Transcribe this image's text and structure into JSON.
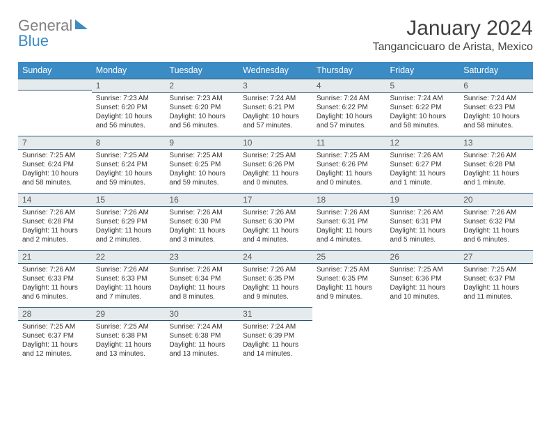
{
  "logo": {
    "word1": "General",
    "word2": "Blue"
  },
  "header": {
    "month_title": "January 2024",
    "location": "Tangancicuaro de Arista, Mexico"
  },
  "colors": {
    "header_bg": "#3b8bc4",
    "header_text": "#ffffff",
    "daynum_bg": "#e5eaed",
    "daynum_border": "#2a5673",
    "body_text": "#303030",
    "logo_grey": "#808080",
    "logo_blue": "#3b8bc4"
  },
  "days_of_week": [
    "Sunday",
    "Monday",
    "Tuesday",
    "Wednesday",
    "Thursday",
    "Friday",
    "Saturday"
  ],
  "weeks": [
    [
      null,
      {
        "n": "1",
        "sunrise": "Sunrise: 7:23 AM",
        "sunset": "Sunset: 6:20 PM",
        "dl1": "Daylight: 10 hours",
        "dl2": "and 56 minutes."
      },
      {
        "n": "2",
        "sunrise": "Sunrise: 7:23 AM",
        "sunset": "Sunset: 6:20 PM",
        "dl1": "Daylight: 10 hours",
        "dl2": "and 56 minutes."
      },
      {
        "n": "3",
        "sunrise": "Sunrise: 7:24 AM",
        "sunset": "Sunset: 6:21 PM",
        "dl1": "Daylight: 10 hours",
        "dl2": "and 57 minutes."
      },
      {
        "n": "4",
        "sunrise": "Sunrise: 7:24 AM",
        "sunset": "Sunset: 6:22 PM",
        "dl1": "Daylight: 10 hours",
        "dl2": "and 57 minutes."
      },
      {
        "n": "5",
        "sunrise": "Sunrise: 7:24 AM",
        "sunset": "Sunset: 6:22 PM",
        "dl1": "Daylight: 10 hours",
        "dl2": "and 58 minutes."
      },
      {
        "n": "6",
        "sunrise": "Sunrise: 7:24 AM",
        "sunset": "Sunset: 6:23 PM",
        "dl1": "Daylight: 10 hours",
        "dl2": "and 58 minutes."
      }
    ],
    [
      {
        "n": "7",
        "sunrise": "Sunrise: 7:25 AM",
        "sunset": "Sunset: 6:24 PM",
        "dl1": "Daylight: 10 hours",
        "dl2": "and 58 minutes."
      },
      {
        "n": "8",
        "sunrise": "Sunrise: 7:25 AM",
        "sunset": "Sunset: 6:24 PM",
        "dl1": "Daylight: 10 hours",
        "dl2": "and 59 minutes."
      },
      {
        "n": "9",
        "sunrise": "Sunrise: 7:25 AM",
        "sunset": "Sunset: 6:25 PM",
        "dl1": "Daylight: 10 hours",
        "dl2": "and 59 minutes."
      },
      {
        "n": "10",
        "sunrise": "Sunrise: 7:25 AM",
        "sunset": "Sunset: 6:26 PM",
        "dl1": "Daylight: 11 hours",
        "dl2": "and 0 minutes."
      },
      {
        "n": "11",
        "sunrise": "Sunrise: 7:25 AM",
        "sunset": "Sunset: 6:26 PM",
        "dl1": "Daylight: 11 hours",
        "dl2": "and 0 minutes."
      },
      {
        "n": "12",
        "sunrise": "Sunrise: 7:26 AM",
        "sunset": "Sunset: 6:27 PM",
        "dl1": "Daylight: 11 hours",
        "dl2": "and 1 minute."
      },
      {
        "n": "13",
        "sunrise": "Sunrise: 7:26 AM",
        "sunset": "Sunset: 6:28 PM",
        "dl1": "Daylight: 11 hours",
        "dl2": "and 1 minute."
      }
    ],
    [
      {
        "n": "14",
        "sunrise": "Sunrise: 7:26 AM",
        "sunset": "Sunset: 6:28 PM",
        "dl1": "Daylight: 11 hours",
        "dl2": "and 2 minutes."
      },
      {
        "n": "15",
        "sunrise": "Sunrise: 7:26 AM",
        "sunset": "Sunset: 6:29 PM",
        "dl1": "Daylight: 11 hours",
        "dl2": "and 2 minutes."
      },
      {
        "n": "16",
        "sunrise": "Sunrise: 7:26 AM",
        "sunset": "Sunset: 6:30 PM",
        "dl1": "Daylight: 11 hours",
        "dl2": "and 3 minutes."
      },
      {
        "n": "17",
        "sunrise": "Sunrise: 7:26 AM",
        "sunset": "Sunset: 6:30 PM",
        "dl1": "Daylight: 11 hours",
        "dl2": "and 4 minutes."
      },
      {
        "n": "18",
        "sunrise": "Sunrise: 7:26 AM",
        "sunset": "Sunset: 6:31 PM",
        "dl1": "Daylight: 11 hours",
        "dl2": "and 4 minutes."
      },
      {
        "n": "19",
        "sunrise": "Sunrise: 7:26 AM",
        "sunset": "Sunset: 6:31 PM",
        "dl1": "Daylight: 11 hours",
        "dl2": "and 5 minutes."
      },
      {
        "n": "20",
        "sunrise": "Sunrise: 7:26 AM",
        "sunset": "Sunset: 6:32 PM",
        "dl1": "Daylight: 11 hours",
        "dl2": "and 6 minutes."
      }
    ],
    [
      {
        "n": "21",
        "sunrise": "Sunrise: 7:26 AM",
        "sunset": "Sunset: 6:33 PM",
        "dl1": "Daylight: 11 hours",
        "dl2": "and 6 minutes."
      },
      {
        "n": "22",
        "sunrise": "Sunrise: 7:26 AM",
        "sunset": "Sunset: 6:33 PM",
        "dl1": "Daylight: 11 hours",
        "dl2": "and 7 minutes."
      },
      {
        "n": "23",
        "sunrise": "Sunrise: 7:26 AM",
        "sunset": "Sunset: 6:34 PM",
        "dl1": "Daylight: 11 hours",
        "dl2": "and 8 minutes."
      },
      {
        "n": "24",
        "sunrise": "Sunrise: 7:26 AM",
        "sunset": "Sunset: 6:35 PM",
        "dl1": "Daylight: 11 hours",
        "dl2": "and 9 minutes."
      },
      {
        "n": "25",
        "sunrise": "Sunrise: 7:25 AM",
        "sunset": "Sunset: 6:35 PM",
        "dl1": "Daylight: 11 hours",
        "dl2": "and 9 minutes."
      },
      {
        "n": "26",
        "sunrise": "Sunrise: 7:25 AM",
        "sunset": "Sunset: 6:36 PM",
        "dl1": "Daylight: 11 hours",
        "dl2": "and 10 minutes."
      },
      {
        "n": "27",
        "sunrise": "Sunrise: 7:25 AM",
        "sunset": "Sunset: 6:37 PM",
        "dl1": "Daylight: 11 hours",
        "dl2": "and 11 minutes."
      }
    ],
    [
      {
        "n": "28",
        "sunrise": "Sunrise: 7:25 AM",
        "sunset": "Sunset: 6:37 PM",
        "dl1": "Daylight: 11 hours",
        "dl2": "and 12 minutes."
      },
      {
        "n": "29",
        "sunrise": "Sunrise: 7:25 AM",
        "sunset": "Sunset: 6:38 PM",
        "dl1": "Daylight: 11 hours",
        "dl2": "and 13 minutes."
      },
      {
        "n": "30",
        "sunrise": "Sunrise: 7:24 AM",
        "sunset": "Sunset: 6:38 PM",
        "dl1": "Daylight: 11 hours",
        "dl2": "and 13 minutes."
      },
      {
        "n": "31",
        "sunrise": "Sunrise: 7:24 AM",
        "sunset": "Sunset: 6:39 PM",
        "dl1": "Daylight: 11 hours",
        "dl2": "and 14 minutes."
      },
      null,
      null,
      null
    ]
  ]
}
